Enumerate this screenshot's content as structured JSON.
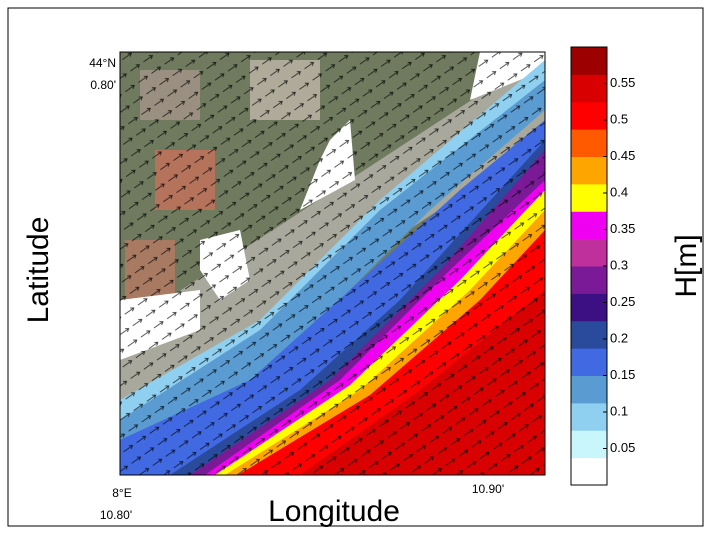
{
  "map": {
    "y_label": "Latitude",
    "x_label": "Longitude",
    "lat_corner_deg": "44°N",
    "lat_corner_min": "0.80'",
    "lon_corner_deg": "8°E",
    "lon_corner_min": "10.80'",
    "lon_right_min": "10.90'",
    "colorbar": {
      "label": "H[m]",
      "clim": [
        0,
        0.6
      ],
      "ticks": [
        0.05,
        0.1,
        0.15,
        0.2,
        0.25,
        0.3,
        0.35,
        0.4,
        0.45,
        0.5,
        0.55
      ],
      "colors": [
        "#ffffff",
        "#c8f6fa",
        "#8fd0f0",
        "#5a9bd2",
        "#4169e1",
        "#2a4b9b",
        "#3c0f82",
        "#7a1a96",
        "#c0309c",
        "#f000f0",
        "#ffff00",
        "#ffa500",
        "#ff5a00",
        "#ff0000",
        "#d80000",
        "#9c0000"
      ]
    }
  }
}
